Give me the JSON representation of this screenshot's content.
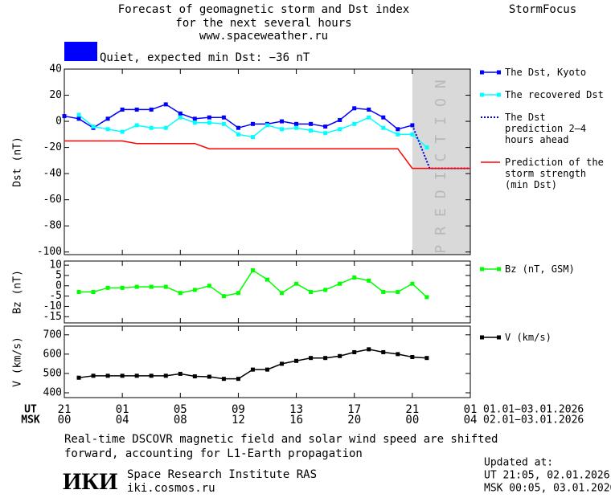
{
  "header": {
    "title_lines": [
      "Forecast of geomagnetic storm and Dst index",
      "for the next several hours",
      "www.spaceweather.ru"
    ],
    "brand": "StormFocus",
    "status": "Quiet, expected min Dst: −36 nT",
    "status_color": "#0000ff"
  },
  "footer": {
    "caption_lines": [
      "Real-time DSCOVR magnetic field and solar wind speed are shifted",
      "forward, accounting for L1-Earth propagation"
    ],
    "logo": "ИКИ",
    "institute": "Space Research Institute RAS",
    "site": "iki.cosmos.ru",
    "updated_title": "Updated at:",
    "updated_ut": "UT   21:05, 02.01.2026",
    "updated_msk": "MSK 00:05, 03.01.2026",
    "ut_label": "UT",
    "msk_label": "MSK",
    "ut_range": "01.01−03.01.2026",
    "msk_range": "02.01−03.01.2026"
  },
  "chart_data": [
    {
      "type": "line",
      "ylabel": "Dst (nT)",
      "xlim": [
        0,
        28
      ],
      "ylim": [
        -102,
        40
      ],
      "yticks": [
        40,
        20,
        0,
        -20,
        -40,
        -60,
        -80,
        -100
      ],
      "xticks": [
        0,
        4,
        8,
        12,
        16,
        20,
        24,
        28
      ],
      "prediction_band": {
        "x": [
          24,
          28
        ],
        "label": "PREDICTION",
        "color": "#d9d9d9"
      },
      "series": [
        {
          "name": "The Dst, Kyoto",
          "color": "#0000ff",
          "style": "solid",
          "markers": true,
          "x": [
            0,
            1,
            2,
            3,
            4,
            5,
            6,
            7,
            8,
            9,
            10,
            11,
            12,
            13,
            14,
            15,
            16,
            17,
            18,
            19,
            20,
            21,
            22,
            23,
            24
          ],
          "values": [
            4,
            2,
            -5,
            2,
            9,
            9,
            9,
            13,
            6,
            2,
            3,
            3,
            -5,
            -2,
            -2,
            0,
            -2,
            -2,
            -4,
            1,
            10,
            9,
            3,
            -6,
            -3
          ]
        },
        {
          "name": "The recovered Dst",
          "color": "#00ffff",
          "style": "solid",
          "markers": true,
          "x": [
            1,
            2,
            3,
            4,
            5,
            6,
            7,
            8,
            9,
            10,
            11,
            12,
            13,
            14,
            15,
            16,
            17,
            18,
            19,
            20,
            21,
            22,
            23,
            24,
            25
          ],
          "values": [
            5,
            -4,
            -6,
            -8,
            -3,
            -5,
            -5,
            3,
            -1,
            -1,
            -2,
            -10,
            -12,
            -3,
            -6,
            -5,
            -7,
            -9,
            -6,
            -2,
            3,
            -5,
            -10,
            -10,
            -20
          ]
        },
        {
          "name": "The Dst prediction 2–4 hours ahead",
          "color": "#0000cc",
          "style": "dotted",
          "markers": false,
          "x": [
            24,
            25.2,
            28
          ],
          "values": [
            -3,
            -36,
            -36
          ]
        },
        {
          "name": "Prediction of the storm strength (min Dst)",
          "color": "#ff0000",
          "style": "solid",
          "markers": false,
          "x": [
            0,
            4,
            5,
            9,
            10,
            23,
            24,
            28
          ],
          "values": [
            -15,
            -15,
            -17,
            -17,
            -21,
            -21,
            -36,
            -36
          ]
        }
      ]
    },
    {
      "type": "line",
      "ylabel": "Bz (nT)",
      "xlim": [
        0,
        28
      ],
      "ylim": [
        -18,
        12
      ],
      "yticks": [
        10,
        5,
        0,
        -5,
        -10,
        -15
      ],
      "xticks": [
        0,
        4,
        8,
        12,
        16,
        20,
        24,
        28
      ],
      "series": [
        {
          "name": "Bz (nT, GSM)",
          "color": "#00ff00",
          "style": "solid",
          "markers": true,
          "x": [
            1,
            2,
            3,
            4,
            5,
            6,
            7,
            8,
            9,
            10,
            11,
            12,
            13,
            14,
            15,
            16,
            17,
            18,
            19,
            20,
            21,
            22,
            23,
            24,
            25
          ],
          "values": [
            -3,
            -3,
            -1,
            -1,
            -0.5,
            -0.5,
            -0.5,
            -3.5,
            -2,
            0,
            -5,
            -3.5,
            7.5,
            3,
            -3.5,
            1,
            -3,
            -2,
            1,
            4,
            2.5,
            -3,
            -3,
            1,
            -5.5
          ]
        }
      ]
    },
    {
      "type": "line",
      "ylabel": "V (km/s)",
      "xlim": [
        0,
        28
      ],
      "ylim": [
        375,
        745
      ],
      "yticks": [
        700,
        600,
        500,
        400
      ],
      "xticks": [
        {
          "value": 0,
          "label": "21"
        },
        {
          "value": 4,
          "label": "01"
        },
        {
          "value": 8,
          "label": "05"
        },
        {
          "value": 12,
          "label": "09"
        },
        {
          "value": 16,
          "label": "13"
        },
        {
          "value": 20,
          "label": "17"
        },
        {
          "value": 24,
          "label": "21"
        },
        {
          "value": 28,
          "label": "01"
        }
      ],
      "msk_ticks": [
        {
          "value": 0,
          "label": "00"
        },
        {
          "value": 4,
          "label": "04"
        },
        {
          "value": 8,
          "label": "08"
        },
        {
          "value": 12,
          "label": "12"
        },
        {
          "value": 16,
          "label": "16"
        },
        {
          "value": 20,
          "label": "20"
        },
        {
          "value": 24,
          "label": "00"
        },
        {
          "value": 28,
          "label": "04"
        }
      ],
      "series": [
        {
          "name": "V (km/s)",
          "color": "#000000",
          "style": "solid",
          "markers": true,
          "x": [
            1,
            2,
            3,
            4,
            5,
            6,
            7,
            8,
            9,
            10,
            11,
            12,
            13,
            14,
            15,
            16,
            17,
            18,
            19,
            20,
            21,
            22,
            23,
            24,
            25
          ],
          "values": [
            478,
            488,
            488,
            488,
            488,
            488,
            488,
            498,
            485,
            483,
            472,
            472,
            520,
            520,
            550,
            565,
            580,
            580,
            590,
            610,
            625,
            610,
            600,
            585,
            580
          ]
        }
      ]
    }
  ]
}
